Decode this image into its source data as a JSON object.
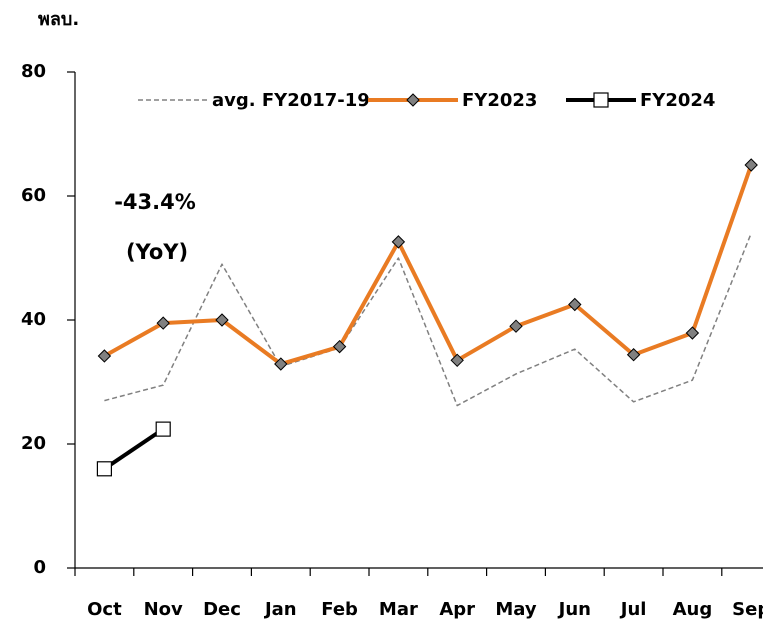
{
  "chart_data": {
    "type": "line",
    "y_unit": "พลบ.",
    "categories": [
      "Oct",
      "Nov",
      "Dec",
      "Jan",
      "Feb",
      "Mar",
      "Apr",
      "May",
      "Jun",
      "Jul",
      "Aug",
      "Sep"
    ],
    "series": [
      {
        "name": "avg. FY2017-19",
        "color": "#808080",
        "style": "dashed",
        "marker": "none",
        "values": [
          27,
          29.5,
          49,
          32.5,
          35.5,
          50,
          26.2,
          31.3,
          35.3,
          26.8,
          30.3,
          54
        ]
      },
      {
        "name": "FY2023",
        "color": "#e97b23",
        "style": "solid",
        "marker": "diamond",
        "values": [
          34.2,
          39.5,
          40,
          32.9,
          35.7,
          52.6,
          33.5,
          39,
          42.5,
          34.4,
          37.9,
          65
        ]
      },
      {
        "name": "FY2024",
        "color": "#000000",
        "style": "solid",
        "marker": "square",
        "values": [
          16,
          22.4,
          null,
          null,
          null,
          null,
          null,
          null,
          null,
          null,
          null,
          null
        ]
      }
    ],
    "annotations": [
      {
        "text": "-43.4%",
        "color": "#ff0000"
      },
      {
        "text": "(YoY)",
        "color": "#ff0000"
      }
    ],
    "ylim": [
      0,
      80
    ],
    "yticks": [
      0,
      20,
      40,
      60,
      80
    ],
    "grid": false
  }
}
